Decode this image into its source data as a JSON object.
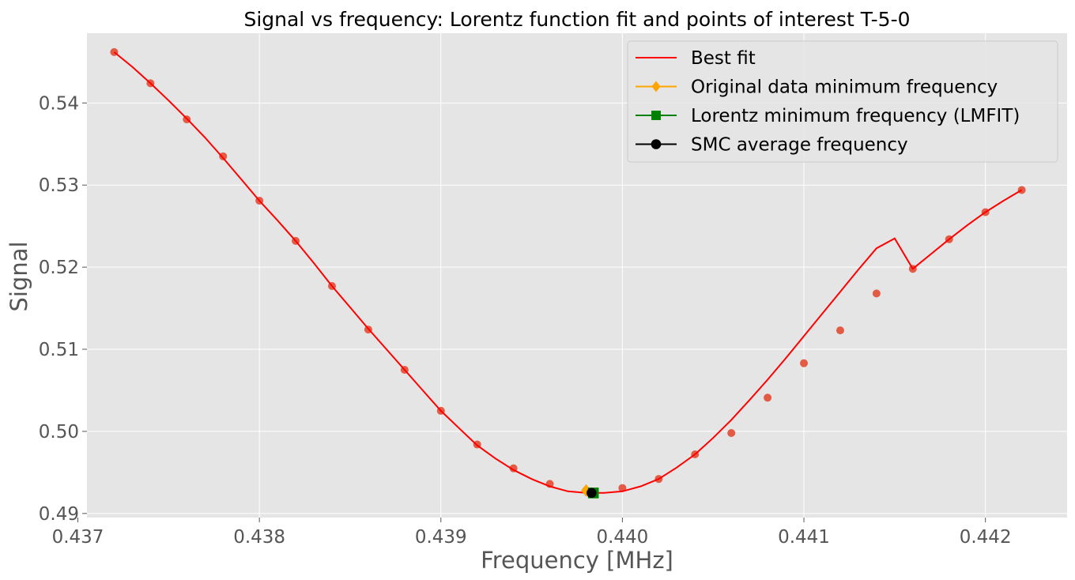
{
  "chart_data": {
    "type": "scatter",
    "title": "Signal vs frequency: Lorentz function fit and points of interest T-5-0",
    "xlabel": "Frequency [MHz]",
    "ylabel": "Signal",
    "xlim": [
      0.43705,
      0.44245
    ],
    "ylim": [
      0.4895,
      0.5485
    ],
    "xticks": [
      0.437,
      0.438,
      0.439,
      0.44,
      0.441,
      0.442
    ],
    "xtick_labels": [
      "0.437",
      "0.438",
      "0.439",
      "0.440",
      "0.441",
      "0.442"
    ],
    "yticks": [
      0.49,
      0.5,
      0.51,
      0.52,
      0.53,
      0.54
    ],
    "ytick_labels": [
      "0.49",
      "0.50",
      "0.51",
      "0.52",
      "0.53",
      "0.54"
    ],
    "grid": true,
    "legend_position": "top-right",
    "colors": {
      "plot_bg": "#e5e5e5",
      "grid": "#ffffff",
      "data_points": "#e24a33",
      "fit_line": "#ff0000",
      "original_min": "#ffa500",
      "lorentz_min": "#008000",
      "smc_avg": "#000000"
    },
    "series": [
      {
        "name": "",
        "kind": "data",
        "x": [
          0.4372,
          0.4374,
          0.4376,
          0.4378,
          0.438,
          0.4382,
          0.4384,
          0.4386,
          0.4388,
          0.439,
          0.4392,
          0.4394,
          0.4396,
          0.4398,
          0.44,
          0.4402,
          0.4404,
          0.4406,
          0.4408,
          0.441,
          0.4412,
          0.4414,
          0.4416,
          0.4418,
          0.442,
          0.4422
        ],
        "y": [
          0.5462,
          0.5424,
          0.538,
          0.5335,
          0.5281,
          0.5232,
          0.5177,
          0.5124,
          0.5075,
          0.5025,
          0.4984,
          0.4955,
          0.4936,
          0.4928,
          0.4931,
          0.4942,
          0.4972,
          0.4998,
          0.5041,
          0.5083,
          0.5123,
          0.5168,
          0.5198,
          0.5234,
          0.5267,
          0.5294
        ]
      },
      {
        "name": "Best fit",
        "kind": "line",
        "x": [
          0.4372,
          0.4373,
          0.4374,
          0.4375,
          0.4376,
          0.4377,
          0.4378,
          0.4379,
          0.438,
          0.4381,
          0.4382,
          0.4383,
          0.4384,
          0.4385,
          0.4386,
          0.4387,
          0.4388,
          0.4389,
          0.439,
          0.4391,
          0.4392,
          0.4393,
          0.4394,
          0.4395,
          0.4396,
          0.4397,
          0.4398,
          0.4399,
          0.44,
          0.4401,
          0.4402,
          0.4403,
          0.4404,
          0.4405,
          0.4406,
          0.4407,
          0.4408,
          0.4409,
          0.441,
          0.4411,
          0.4412,
          0.4413,
          0.4414,
          0.4415,
          0.4416,
          0.4417,
          0.4418,
          0.4419,
          0.442,
          0.4421,
          0.4422
        ],
        "y": [
          0.5462,
          0.5444,
          0.5424,
          0.5403,
          0.5381,
          0.5358,
          0.5333,
          0.5307,
          0.5281,
          0.5257,
          0.5232,
          0.5205,
          0.5177,
          0.5151,
          0.5125,
          0.51,
          0.5075,
          0.505,
          0.5025,
          0.5004,
          0.4983,
          0.4967,
          0.4953,
          0.4942,
          0.4933,
          0.4927,
          0.4925,
          0.4925,
          0.4927,
          0.4933,
          0.4942,
          0.4956,
          0.4972,
          0.4992,
          0.5014,
          0.5038,
          0.5063,
          0.5089,
          0.5116,
          0.5143,
          0.517,
          0.5197,
          0.5223,
          0.5235,
          0.5198,
          0.5216,
          0.5234,
          0.5251,
          0.5267,
          0.5281,
          0.5294
        ]
      },
      {
        "name": "Original data minimum frequency",
        "kind": "marker",
        "marker": "diamond",
        "x": [
          0.4398
        ],
        "y": [
          0.4928
        ]
      },
      {
        "name": "Lorentz minimum frequency (LMFIT)",
        "kind": "marker",
        "marker": "square",
        "x": [
          0.43984
        ],
        "y": [
          0.4925
        ]
      },
      {
        "name": "SMC average frequency",
        "kind": "marker",
        "marker": "circle",
        "x": [
          0.43983
        ],
        "y": [
          0.4925
        ]
      }
    ],
    "legend": [
      {
        "label": "Best fit",
        "color": "#ff0000",
        "marker": "none"
      },
      {
        "label": "Original data minimum frequency",
        "color": "#ffa500",
        "marker": "diamond"
      },
      {
        "label": "Lorentz minimum frequency (LMFIT)",
        "color": "#008000",
        "marker": "square"
      },
      {
        "label": "SMC average frequency",
        "color": "#000000",
        "marker": "circle"
      }
    ]
  }
}
